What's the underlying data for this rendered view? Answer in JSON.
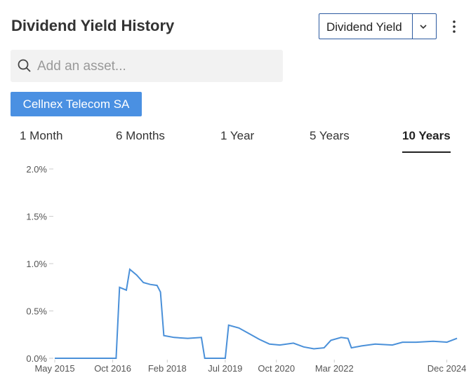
{
  "header": {
    "title": "Dividend Yield History"
  },
  "metric_select": "Dividend Yield",
  "search_placeholder": "Add an asset...",
  "selected_asset": "Cellnex Telecom SA",
  "tabs": [
    "1 Month",
    "6 Months",
    "1 Year",
    "5 Years",
    "10 Years"
  ],
  "chart_data": {
    "type": "line",
    "color": "#4a90d9",
    "x": [
      "2015-05",
      "2016-11",
      "2016-12",
      "2017-02",
      "2017-03",
      "2017-05",
      "2017-07",
      "2017-09",
      "2017-11",
      "2017-12",
      "2018-01",
      "2018-04",
      "2018-08",
      "2018-12",
      "2019-01",
      "2019-07",
      "2019-08",
      "2019-11",
      "2020-02",
      "2020-05",
      "2020-08",
      "2020-11",
      "2021-03",
      "2021-06",
      "2021-09",
      "2021-12",
      "2022-02",
      "2022-05",
      "2022-07",
      "2022-08",
      "2022-11",
      "2023-03",
      "2023-08",
      "2023-11",
      "2024-03",
      "2024-08",
      "2024-12",
      "2025-03"
    ],
    "values": [
      0,
      0,
      0.75,
      0.72,
      0.94,
      0.88,
      0.8,
      0.78,
      0.77,
      0.7,
      0.24,
      0.22,
      0.21,
      0.22,
      0,
      0,
      0.35,
      0.32,
      0.26,
      0.2,
      0.15,
      0.14,
      0.16,
      0.12,
      0.1,
      0.11,
      0.19,
      0.22,
      0.21,
      0.11,
      0.13,
      0.15,
      0.14,
      0.17,
      0.17,
      0.18,
      0.17,
      0.21
    ],
    "xlim": [
      "2015-05",
      "2025-04"
    ],
    "xticks": [
      {
        "value": "2015-05",
        "label": "May 2015"
      },
      {
        "value": "2016-10",
        "label": "Oct 2016"
      },
      {
        "value": "2018-02",
        "label": "Feb 2018"
      },
      {
        "value": "2019-07",
        "label": "Jul 2019"
      },
      {
        "value": "2020-10",
        "label": "Oct 2020"
      },
      {
        "value": "2022-03",
        "label": "Mar 2022"
      },
      {
        "value": "2024-12",
        "label": "Dec 2024"
      }
    ],
    "ylim": [
      0,
      2.0
    ],
    "yticks": [
      {
        "value": 0,
        "label": "0.0%"
      },
      {
        "value": 0.5,
        "label": "0.5%"
      },
      {
        "value": 1.0,
        "label": "1.0%"
      },
      {
        "value": 1.5,
        "label": "1.5%"
      },
      {
        "value": 2.0,
        "label": "2.0%"
      }
    ]
  }
}
